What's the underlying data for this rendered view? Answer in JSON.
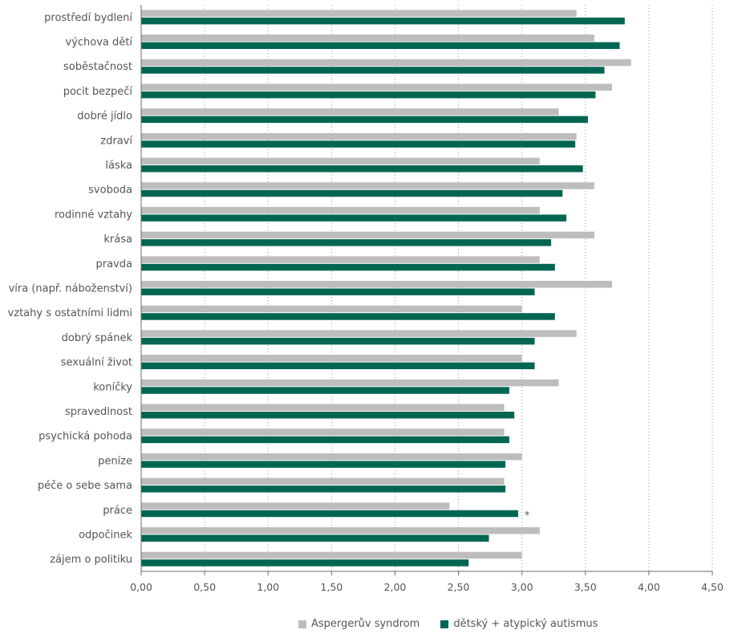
{
  "chart_data": {
    "type": "bar",
    "orientation": "horizontal",
    "categories": [
      "prostředí bydlení",
      "výchova dětí",
      "soběstačnost",
      "pocit bezpečí",
      "dobré jídlo",
      "zdraví",
      "láska",
      "svoboda",
      "rodinné vztahy",
      "krása",
      "pravda",
      "víra (např. náboženství)",
      "vztahy s ostatními lidmi",
      "dobrý spánek",
      "sexuální život",
      "koníčky",
      "spravedlnost",
      "psychická pohoda",
      "peníze",
      "péče o sebe sama",
      "práce",
      "odpočinek",
      "zájem o politiku"
    ],
    "series": [
      {
        "name": "Aspergerův syndrom",
        "color": "#bdbdbd",
        "values": [
          3.43,
          3.57,
          3.86,
          3.71,
          3.29,
          3.43,
          3.14,
          3.57,
          3.14,
          3.57,
          3.14,
          3.71,
          3.0,
          3.43,
          3.0,
          3.29,
          2.86,
          2.86,
          3.0,
          2.86,
          2.43,
          3.14,
          3.0
        ]
      },
      {
        "name": "dětský + atypický autismus",
        "color": "#006652",
        "values": [
          3.81,
          3.77,
          3.65,
          3.58,
          3.52,
          3.42,
          3.48,
          3.32,
          3.35,
          3.23,
          3.26,
          3.1,
          3.26,
          3.1,
          3.1,
          2.9,
          2.94,
          2.9,
          2.87,
          2.87,
          2.97,
          2.74,
          2.58
        ]
      }
    ],
    "annotations": [
      {
        "category": "práce",
        "text": "*"
      }
    ],
    "xticks": [
      "0,00",
      "0,50",
      "1,00",
      "1,50",
      "2,00",
      "2,50",
      "3,00",
      "3,50",
      "4,00",
      "4,50"
    ],
    "xlim": [
      0,
      4.5
    ],
    "grid": "vertical dotted",
    "legend_position": "bottom"
  }
}
